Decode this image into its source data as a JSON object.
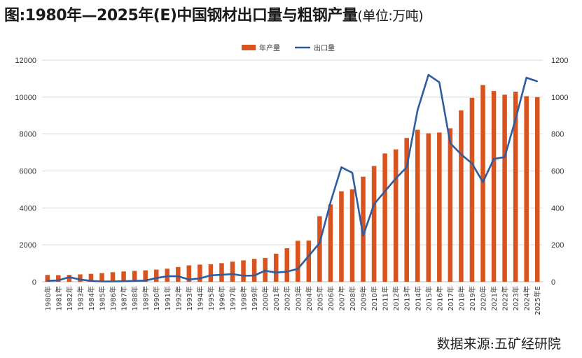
{
  "title": {
    "main": "图:1980年—2025年(E)中国钢材出口量与粗钢产量",
    "unit": "(单位:万吨)"
  },
  "source": "数据来源:五矿经研院",
  "colors": {
    "bar": "#d9531e",
    "line": "#2e5c9e",
    "grid": "#d9d9d9",
    "text": "#333333"
  },
  "chart_data": {
    "type": "bar",
    "legend_position": "top-center",
    "grid": true,
    "categories": [
      "1980年",
      "1981年",
      "1982年",
      "1983年",
      "1984年",
      "1985年",
      "1986年",
      "1987年",
      "1988年",
      "1989年",
      "1990年",
      "1991年",
      "1992年",
      "1993年",
      "1994年",
      "1995年",
      "1996年",
      "1997年",
      "1998年",
      "1999年",
      "2000年",
      "2001年",
      "2002年",
      "2003年",
      "2004年",
      "2005年",
      "2006年",
      "2007年",
      "2008年",
      "2009年",
      "2010年",
      "2011年",
      "2012年",
      "2013年",
      "2014年",
      "2015年",
      "2016年",
      "2017年",
      "2018年",
      "2019年",
      "2020年",
      "2021年",
      "2022年",
      "2023年",
      "2024年",
      "2025年E"
    ],
    "series": [
      {
        "name": "年产量",
        "type": "bar",
        "axis": "left",
        "values": [
          370,
          360,
          370,
          400,
          430,
          470,
          520,
          560,
          590,
          620,
          660,
          710,
          800,
          890,
          930,
          950,
          1010,
          1090,
          1160,
          1240,
          1290,
          1520,
          1820,
          2220,
          2230,
          3550,
          4190,
          4900,
          5010,
          5690,
          6270,
          6950,
          7170,
          7790,
          8230,
          8040,
          8080,
          8310,
          9280,
          9960,
          10650,
          10330,
          10130,
          10290,
          10050,
          10000
        ]
      },
      {
        "name": "出口量",
        "type": "line",
        "axis": "right",
        "values": [
          5,
          8,
          25,
          12,
          5,
          2,
          2,
          3,
          5,
          7,
          20,
          30,
          30,
          12,
          18,
          35,
          38,
          42,
          32,
          34,
          60,
          50,
          55,
          70,
          140,
          210,
          430,
          620,
          590,
          250,
          420,
          490,
          560,
          620,
          930,
          1120,
          1080,
          750,
          690,
          640,
          540,
          665,
          675,
          880,
          1105,
          1085
        ]
      }
    ],
    "y_left": {
      "min": 0,
      "max": 12000,
      "ticks": [
        0,
        2000,
        4000,
        6000,
        8000,
        10000,
        12000
      ]
    },
    "y_right": {
      "min": 0,
      "max": 1200,
      "ticks": [
        0,
        200,
        400,
        600,
        800,
        1000,
        1200
      ]
    }
  }
}
